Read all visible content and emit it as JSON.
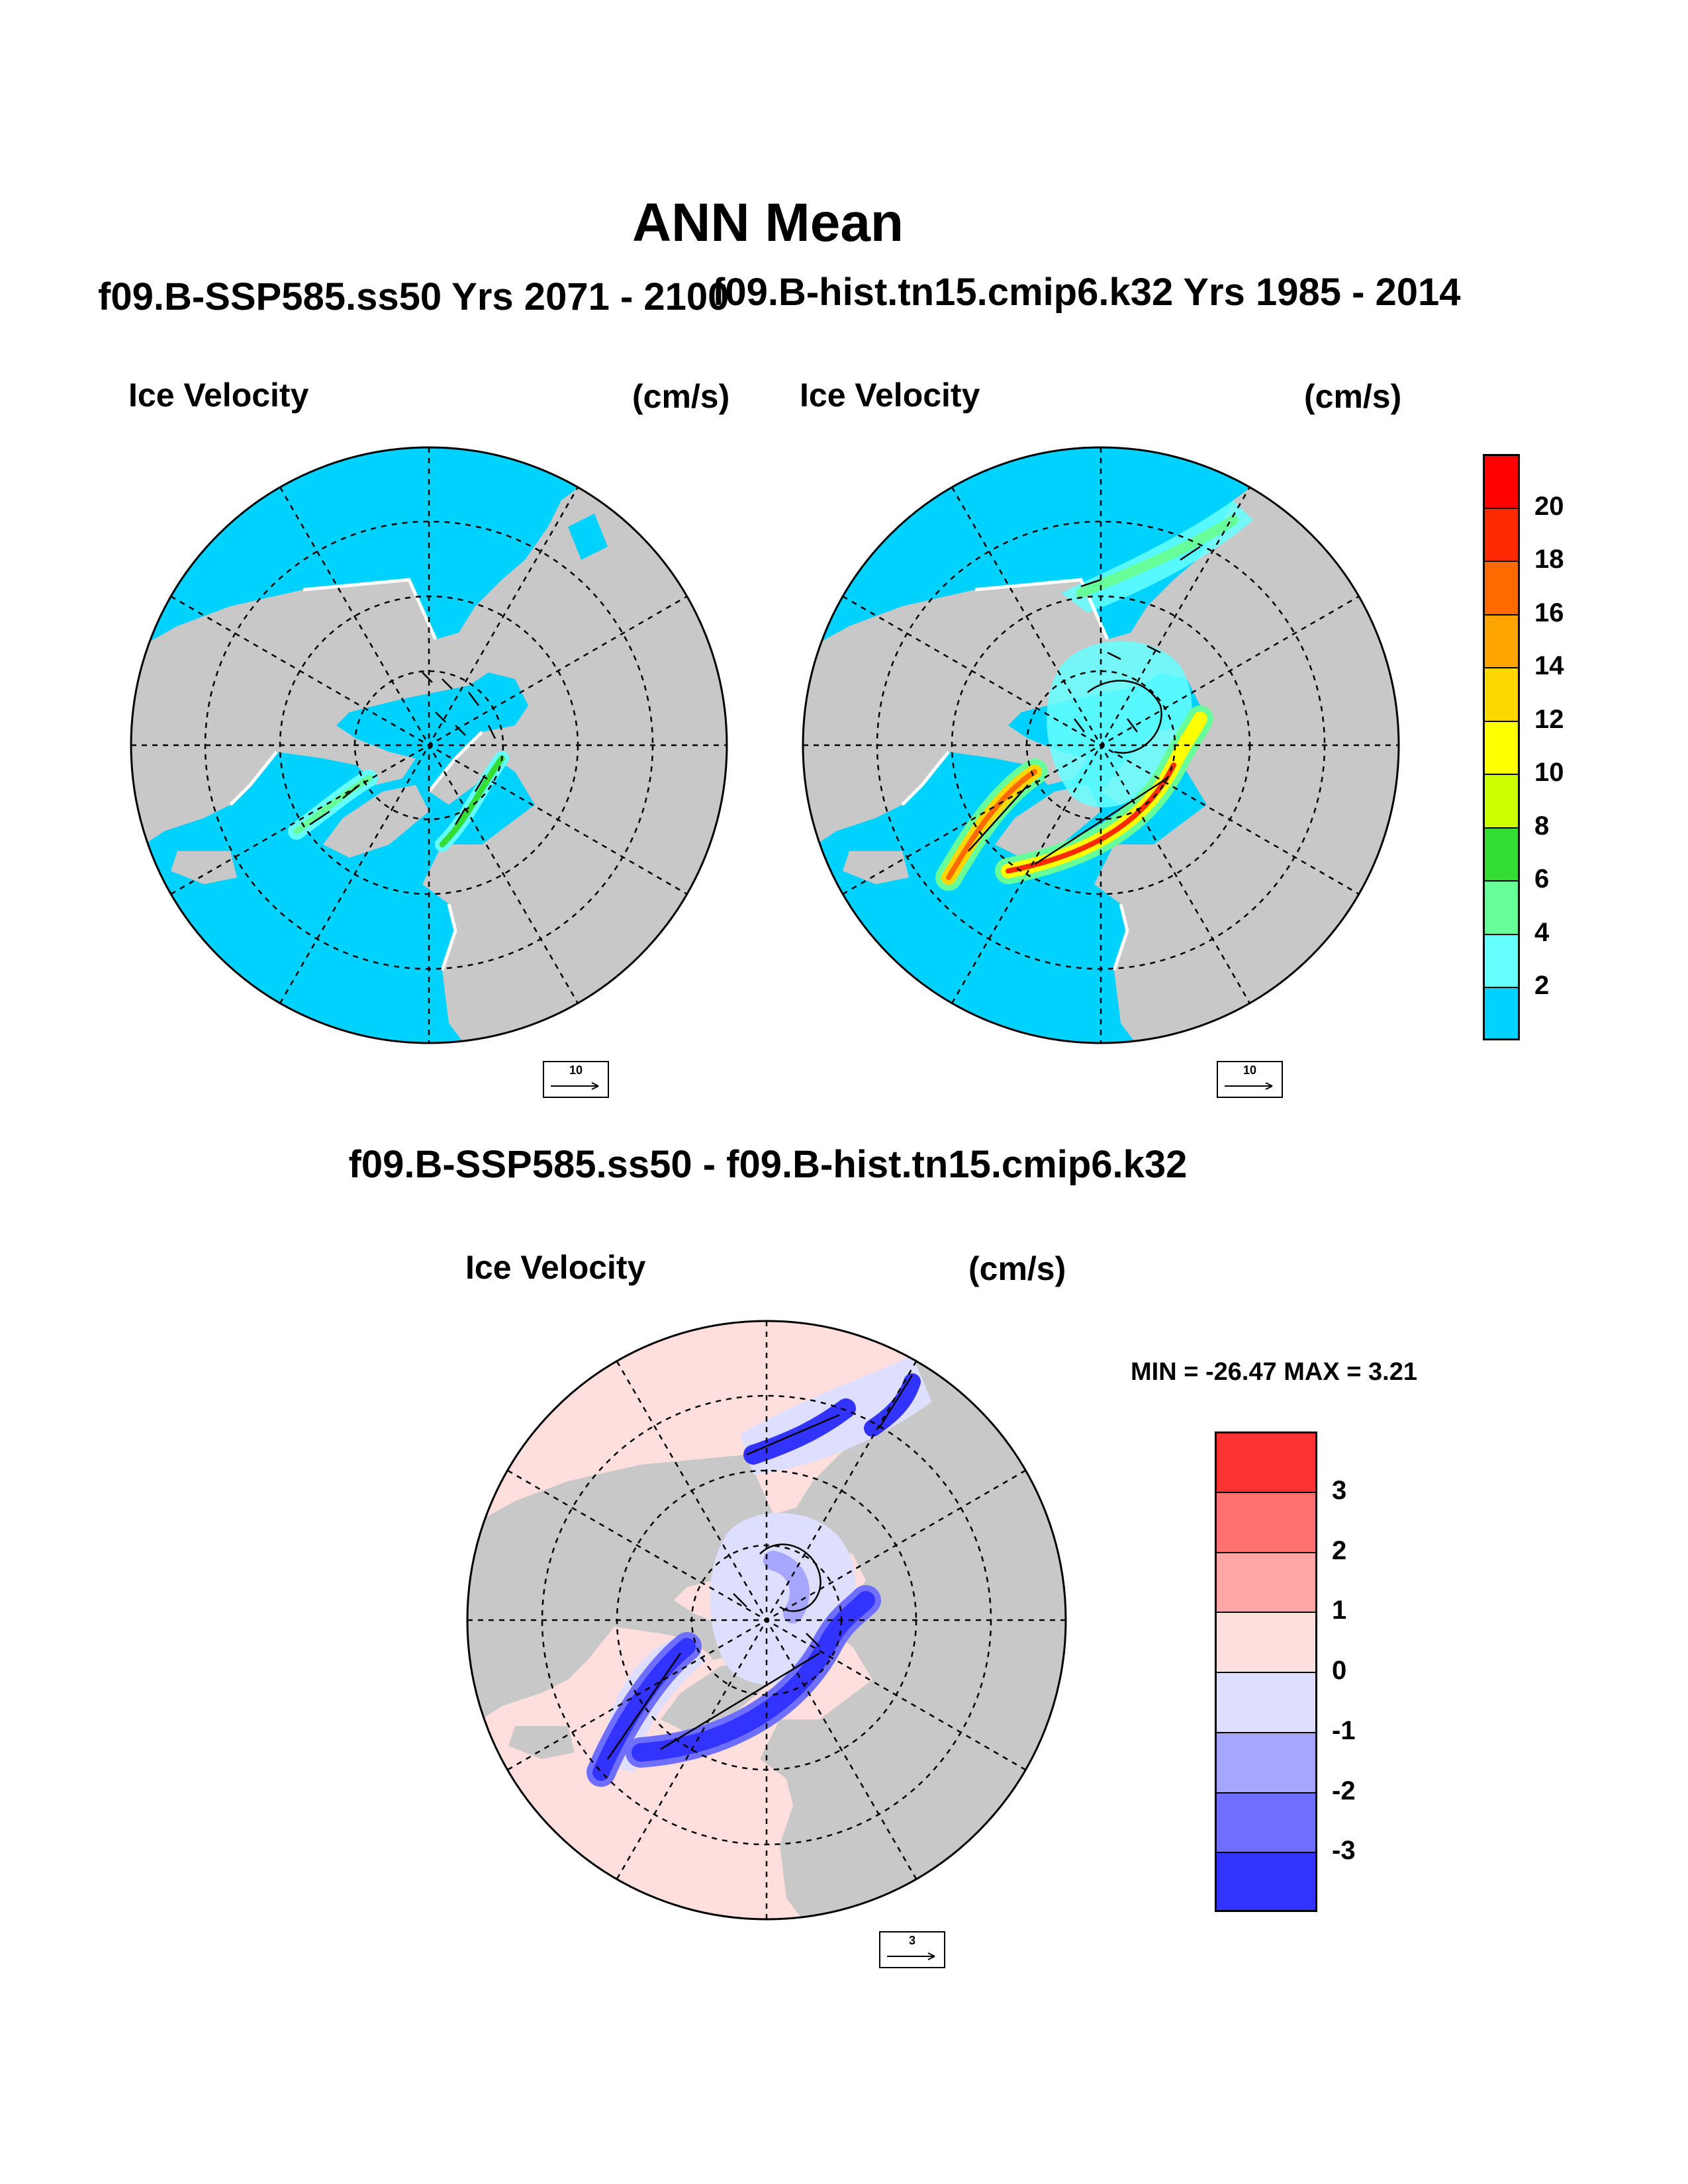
{
  "main_title": "ANN Mean",
  "titles": {
    "left": "f09.B-SSP585.ss50  Yrs 2071 - 2100",
    "right": "f09.B-hist.tn15.cmip6.k32  Yrs 1985 - 2014",
    "difference": "f09.B-SSP585.ss50 - f09.B-hist.tn15.cmip6.k32"
  },
  "panels": [
    {
      "id": "ssp585",
      "variable": "Ice Velocity",
      "units": "(cm/s)",
      "ref_vector": "10"
    },
    {
      "id": "hist",
      "variable": "Ice Velocity",
      "units": "(cm/s)",
      "ref_vector": "10"
    },
    {
      "id": "diff",
      "variable": "Ice Velocity",
      "units": "(cm/s)",
      "ref_vector": "3",
      "stats": "MIN = -26.47 MAX =   3.21"
    }
  ],
  "colorbars": {
    "velocity": {
      "colors": [
        "#00d2ff",
        "#66ffff",
        "#66ff99",
        "#33dd33",
        "#ccff00",
        "#ffff00",
        "#ffd700",
        "#ffa500",
        "#ff6a00",
        "#ff2a00",
        "#ff0000"
      ],
      "labels": [
        "2",
        "4",
        "6",
        "8",
        "10",
        "12",
        "14",
        "16",
        "18",
        "20"
      ]
    },
    "difference": {
      "colors": [
        "#3333ff",
        "#6f6fff",
        "#a6a6ff",
        "#dedefe",
        "#ffdede",
        "#ffa6a6",
        "#ff7070",
        "#ff3333"
      ],
      "labels": [
        "-3",
        "-2",
        "-1",
        "0",
        "1",
        "2",
        "3"
      ]
    }
  },
  "map_colors": {
    "land": "#c8c8c8",
    "coast": "#ffffff",
    "ocean_velocity": "#00d2ff",
    "ocean_difference": "#ffdede"
  }
}
